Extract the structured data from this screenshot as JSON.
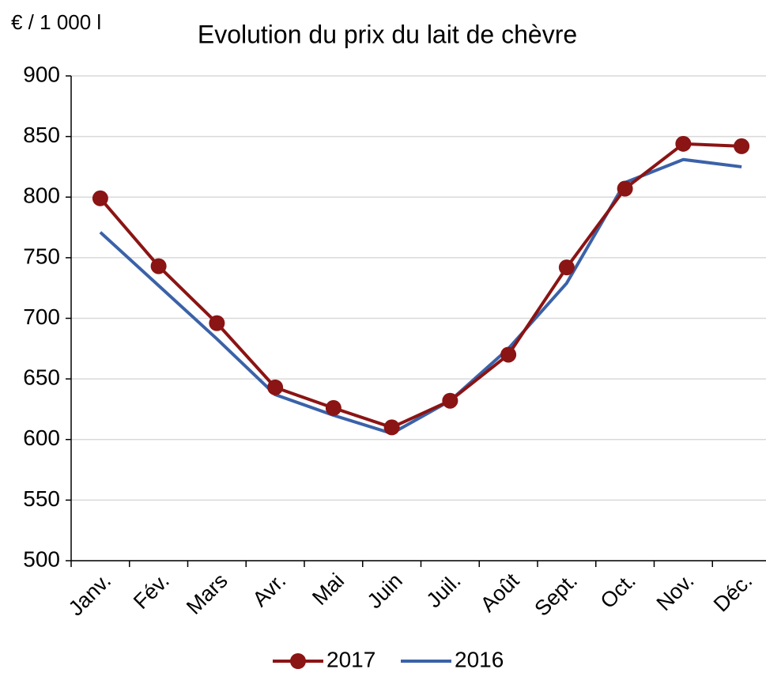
{
  "chart_data": {
    "type": "line",
    "title": "Evolution du prix du lait de chèvre",
    "y_axis_label": "€ / 1 000 l",
    "categories": [
      "Janv.",
      "Fév.",
      "Mars",
      "Avr.",
      "Mai",
      "Juin",
      "Juil.",
      "Août",
      "Sept.",
      "Oct.",
      "Nov.",
      "Déc."
    ],
    "series": [
      {
        "name": "2017",
        "color": "#8b1414",
        "marker": "circle",
        "values": [
          799,
          743,
          696,
          643,
          626,
          610,
          632,
          670,
          742,
          807,
          844,
          842
        ]
      },
      {
        "name": "2016",
        "color": "#3b62a8",
        "marker": "none",
        "values": [
          771,
          727,
          683,
          637,
          620,
          605,
          632,
          675,
          729,
          812,
          831,
          825
        ]
      }
    ],
    "ylim": [
      500,
      900
    ],
    "yticks": [
      500,
      550,
      600,
      650,
      700,
      750,
      800,
      850,
      900
    ],
    "grid": true,
    "legend": "bottom"
  }
}
